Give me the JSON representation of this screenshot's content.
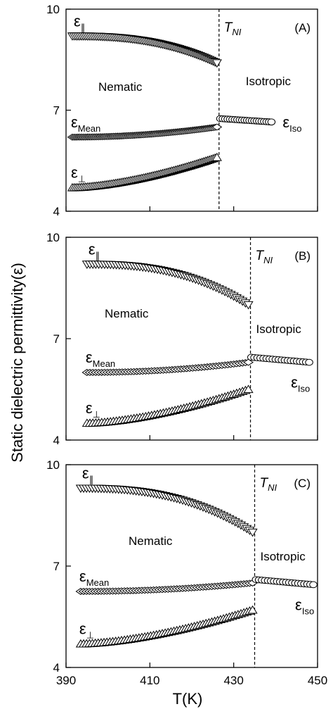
{
  "chart_data": {
    "type": "scatter",
    "xlabel": "T(K)",
    "ylabel": "Static dielectric permittivity(ε)",
    "xlim": [
      390,
      450
    ],
    "ylim": [
      4,
      10
    ],
    "x_ticks": [
      "390",
      "410",
      "430",
      "450"
    ],
    "y_ticks": [
      "4",
      "7",
      "10"
    ],
    "shared_x_axis": true,
    "panels": [
      {
        "tag": "(A)",
        "tni": 426.5,
        "tni_label": "T",
        "tni_sub": "NI",
        "nematic_label": "Nematic",
        "isotropic_label": "Isotropic",
        "series": [
          {
            "name": "ε∥",
            "symbol": "ε",
            "sub": "∥",
            "marker": "triangle-down",
            "x_start": 391.5,
            "x_end": 426.0,
            "y_start": 9.2,
            "y_end": 8.4,
            "curve": 2.5,
            "count": 78
          },
          {
            "name": "εMean",
            "symbol": "ε",
            "sub": "Mean",
            "marker": "diamond",
            "x_start": 391.5,
            "x_end": 426.0,
            "y_start": 6.2,
            "y_end": 6.5,
            "curve": 2.0,
            "count": 78
          },
          {
            "name": "ε⊥",
            "symbol": "ε",
            "sub": "⊥",
            "marker": "triangle-up",
            "x_start": 391.5,
            "x_end": 426.0,
            "y_start": 4.7,
            "y_end": 5.6,
            "curve": 1.6,
            "count": 78
          },
          {
            "name": "εIso",
            "symbol": "ε",
            "sub": "Iso",
            "marker": "circle",
            "x_start": 426.8,
            "x_end": 439.0,
            "y_start": 6.75,
            "y_end": 6.65,
            "curve": 1.0,
            "count": 22
          }
        ]
      },
      {
        "tag": "(B)",
        "tni": 434.0,
        "tni_label": "T",
        "tni_sub": "NI",
        "nematic_label": "Nematic",
        "isotropic_label": "Isotropic",
        "series": [
          {
            "name": "ε∥",
            "symbol": "ε",
            "sub": "∥",
            "marker": "triangle-down",
            "x_start": 395.0,
            "x_end": 433.5,
            "y_start": 9.2,
            "y_end": 8.0,
            "curve": 2.5,
            "count": 56
          },
          {
            "name": "εMean",
            "symbol": "ε",
            "sub": "Mean",
            "marker": "diamond",
            "x_start": 395.0,
            "x_end": 433.5,
            "y_start": 6.0,
            "y_end": 6.3,
            "curve": 2.0,
            "count": 56
          },
          {
            "name": "ε⊥",
            "symbol": "ε",
            "sub": "⊥",
            "marker": "triangle-up",
            "x_start": 395.0,
            "x_end": 433.5,
            "y_start": 4.5,
            "y_end": 5.5,
            "curve": 1.6,
            "count": 56
          },
          {
            "name": "εIso",
            "symbol": "ε",
            "sub": "Iso",
            "marker": "circle",
            "x_start": 434.2,
            "x_end": 448.0,
            "y_start": 6.45,
            "y_end": 6.3,
            "curve": 1.0,
            "count": 20
          }
        ]
      },
      {
        "tag": "(C)",
        "tni": 435.0,
        "tni_label": "T",
        "tni_sub": "NI",
        "nematic_label": "Nematic",
        "isotropic_label": "Isotropic",
        "series": [
          {
            "name": "ε∥",
            "symbol": "ε",
            "sub": "∥",
            "marker": "triangle-down",
            "x_start": 393.5,
            "x_end": 434.5,
            "y_start": 9.3,
            "y_end": 8.0,
            "curve": 2.5,
            "count": 60
          },
          {
            "name": "εMean",
            "symbol": "ε",
            "sub": "Mean",
            "marker": "diamond",
            "x_start": 393.5,
            "x_end": 434.5,
            "y_start": 6.25,
            "y_end": 6.5,
            "curve": 2.0,
            "count": 60
          },
          {
            "name": "ε⊥",
            "symbol": "ε",
            "sub": "⊥",
            "marker": "triangle-up",
            "x_start": 393.5,
            "x_end": 434.5,
            "y_start": 4.7,
            "y_end": 5.7,
            "curve": 1.6,
            "count": 60
          },
          {
            "name": "εIso",
            "symbol": "ε",
            "sub": "Iso",
            "marker": "circle",
            "x_start": 435.3,
            "x_end": 449.0,
            "y_start": 6.6,
            "y_end": 6.45,
            "curve": 1.0,
            "count": 20
          }
        ]
      }
    ]
  },
  "colors": {
    "marker_stroke": "#000000",
    "marker_fill": "#ffffff",
    "axis": "#000000"
  }
}
